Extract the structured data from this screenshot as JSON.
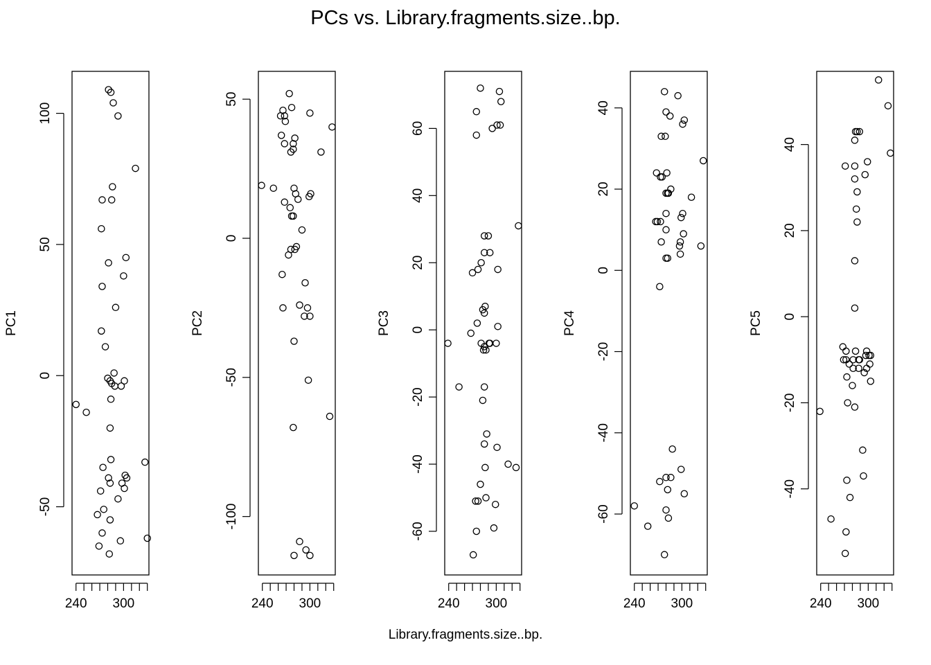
{
  "title": "PCs vs. Library.fragments.size..bp.",
  "xlabel": "Library.fragments.size..bp.",
  "chart_data": [
    {
      "type": "scatter",
      "ylabel": "PC1",
      "xticks": [
        240,
        300
      ],
      "yticks": [
        -50,
        0,
        50,
        100
      ],
      "xlim": [
        235,
        332
      ],
      "ylim": [
        -76,
        116
      ],
      "points": [
        [
          240,
          -11
        ],
        [
          253,
          -14
        ],
        [
          281,
          109
        ],
        [
          284,
          108
        ],
        [
          287,
          104
        ],
        [
          293,
          99
        ],
        [
          315,
          79
        ],
        [
          286,
          72
        ],
        [
          285,
          67
        ],
        [
          273,
          67
        ],
        [
          272,
          56
        ],
        [
          281,
          43
        ],
        [
          303,
          45
        ],
        [
          300,
          38
        ],
        [
          273,
          34
        ],
        [
          290,
          26
        ],
        [
          272,
          17
        ],
        [
          277,
          11
        ],
        [
          288,
          1
        ],
        [
          280,
          -1
        ],
        [
          283,
          -2
        ],
        [
          301,
          -2
        ],
        [
          285,
          -3
        ],
        [
          297,
          -4
        ],
        [
          289,
          -4
        ],
        [
          284,
          -9
        ],
        [
          283,
          -20
        ],
        [
          284,
          -32
        ],
        [
          274,
          -35
        ],
        [
          281,
          -39
        ],
        [
          302,
          -38
        ],
        [
          304,
          -39
        ],
        [
          298,
          -41
        ],
        [
          283,
          -41
        ],
        [
          301,
          -43
        ],
        [
          271,
          -44
        ],
        [
          293,
          -47
        ],
        [
          275,
          -51
        ],
        [
          267,
          -53
        ],
        [
          283,
          -55
        ],
        [
          273,
          -60
        ],
        [
          296,
          -63
        ],
        [
          269,
          -65
        ],
        [
          282,
          -68
        ],
        [
          327,
          -33
        ],
        [
          330,
          -62
        ]
      ]
    },
    {
      "type": "scatter",
      "ylabel": "PC2",
      "xticks": [
        240,
        300
      ],
      "yticks": [
        -100,
        -50,
        0,
        50
      ],
      "xlim": [
        235,
        332
      ],
      "ylim": [
        -121,
        60
      ],
      "points": [
        [
          274,
          52
        ],
        [
          277,
          47
        ],
        [
          266,
          46
        ],
        [
          268,
          44
        ],
        [
          263,
          44
        ],
        [
          300,
          45
        ],
        [
          269,
          42
        ],
        [
          328,
          40
        ],
        [
          264,
          37
        ],
        [
          281,
          36
        ],
        [
          279,
          34
        ],
        [
          268,
          34
        ],
        [
          279,
          32
        ],
        [
          276,
          31
        ],
        [
          314,
          31
        ],
        [
          239,
          19
        ],
        [
          254,
          18
        ],
        [
          280,
          18
        ],
        [
          285,
          14
        ],
        [
          301,
          16
        ],
        [
          299,
          15
        ],
        [
          282,
          16
        ],
        [
          268,
          13
        ],
        [
          275,
          11
        ],
        [
          277,
          8
        ],
        [
          279,
          8
        ],
        [
          290,
          3
        ],
        [
          281,
          -4
        ],
        [
          276,
          -4
        ],
        [
          283,
          -3
        ],
        [
          273,
          -6
        ],
        [
          265,
          -13
        ],
        [
          294,
          -16
        ],
        [
          287,
          -24
        ],
        [
          297,
          -25
        ],
        [
          266,
          -25
        ],
        [
          293,
          -28
        ],
        [
          300,
          -28
        ],
        [
          280,
          -37
        ],
        [
          298,
          -51
        ],
        [
          325,
          -64
        ],
        [
          279,
          -68
        ],
        [
          287,
          -109
        ],
        [
          295,
          -112
        ],
        [
          300,
          -114
        ],
        [
          280,
          -114
        ]
      ]
    },
    {
      "type": "scatter",
      "ylabel": "PC3",
      "xticks": [
        240,
        300
      ],
      "yticks": [
        -60,
        -40,
        -20,
        0,
        20,
        40,
        60
      ],
      "xlim": [
        235,
        332
      ],
      "ylim": [
        -73,
        77
      ],
      "points": [
        [
          280,
          72
        ],
        [
          304,
          71
        ],
        [
          275,
          65
        ],
        [
          306,
          68
        ],
        [
          305,
          61
        ],
        [
          301,
          61
        ],
        [
          295,
          60
        ],
        [
          275,
          58
        ],
        [
          328,
          31
        ],
        [
          290,
          28
        ],
        [
          285,
          28
        ],
        [
          292,
          23
        ],
        [
          285,
          23
        ],
        [
          281,
          20
        ],
        [
          277,
          18
        ],
        [
          302,
          18
        ],
        [
          270,
          17
        ],
        [
          286,
          7
        ],
        [
          285,
          5
        ],
        [
          283,
          6
        ],
        [
          276,
          2
        ],
        [
          302,
          1
        ],
        [
          268,
          -1
        ],
        [
          239,
          -4
        ],
        [
          281,
          -4
        ],
        [
          292,
          -4
        ],
        [
          291,
          -4
        ],
        [
          285,
          -5
        ],
        [
          287,
          -6
        ],
        [
          284,
          -6
        ],
        [
          300,
          -4
        ],
        [
          253,
          -17
        ],
        [
          285,
          -17
        ],
        [
          283,
          -21
        ],
        [
          288,
          -31
        ],
        [
          285,
          -34
        ],
        [
          301,
          -35
        ],
        [
          315,
          -40
        ],
        [
          325,
          -41
        ],
        [
          286,
          -41
        ],
        [
          280,
          -46
        ],
        [
          277,
          -51
        ],
        [
          274,
          -51
        ],
        [
          287,
          -50
        ],
        [
          299,
          -52
        ],
        [
          275,
          -60
        ],
        [
          297,
          -59
        ],
        [
          271,
          -67
        ]
      ]
    },
    {
      "type": "scatter",
      "ylabel": "PC4",
      "xticks": [
        240,
        300
      ],
      "yticks": [
        -60,
        -40,
        -20,
        0,
        20,
        40
      ],
      "xlim": [
        235,
        332
      ],
      "ylim": [
        -75,
        49
      ],
      "points": [
        [
          278,
          44
        ],
        [
          295,
          43
        ],
        [
          280,
          39
        ],
        [
          285,
          38
        ],
        [
          303,
          37
        ],
        [
          301,
          36
        ],
        [
          274,
          33
        ],
        [
          279,
          33
        ],
        [
          327,
          27
        ],
        [
          268,
          24
        ],
        [
          281,
          24
        ],
        [
          273,
          23
        ],
        [
          275,
          23
        ],
        [
          286,
          20
        ],
        [
          282,
          19
        ],
        [
          280,
          19
        ],
        [
          283,
          19
        ],
        [
          312,
          18
        ],
        [
          301,
          14
        ],
        [
          280,
          14
        ],
        [
          299,
          13
        ],
        [
          269,
          12
        ],
        [
          267,
          12
        ],
        [
          273,
          12
        ],
        [
          280,
          10
        ],
        [
          302,
          9
        ],
        [
          298,
          7
        ],
        [
          297,
          6
        ],
        [
          274,
          7
        ],
        [
          324,
          6
        ],
        [
          298,
          4
        ],
        [
          280,
          3
        ],
        [
          282,
          3
        ],
        [
          272,
          -4
        ],
        [
          240,
          -58
        ],
        [
          257,
          -63
        ],
        [
          288,
          -44
        ],
        [
          299,
          -49
        ],
        [
          272,
          -52
        ],
        [
          280,
          -51
        ],
        [
          286,
          -51
        ],
        [
          303,
          -55
        ],
        [
          282,
          -54
        ],
        [
          280,
          -59
        ],
        [
          283,
          -61
        ],
        [
          278,
          -70
        ]
      ]
    },
    {
      "type": "scatter",
      "ylabel": "PC5",
      "xticks": [
        240,
        300
      ],
      "yticks": [
        -40,
        -20,
        0,
        20,
        40
      ],
      "xlim": [
        235,
        332
      ],
      "ylim": [
        -60,
        57
      ],
      "points": [
        [
          313,
          55
        ],
        [
          325,
          49
        ],
        [
          328,
          38
        ],
        [
          289,
          43
        ],
        [
          284,
          43
        ],
        [
          286,
          43
        ],
        [
          283,
          41
        ],
        [
          299,
          36
        ],
        [
          271,
          35
        ],
        [
          283,
          35
        ],
        [
          296,
          33
        ],
        [
          283,
          32
        ],
        [
          286,
          29
        ],
        [
          285,
          25
        ],
        [
          286,
          22
        ],
        [
          283,
          13
        ],
        [
          283,
          2
        ],
        [
          268,
          -7
        ],
        [
          272,
          -8
        ],
        [
          284,
          -8
        ],
        [
          298,
          -8
        ],
        [
          301,
          -9
        ],
        [
          303,
          -9
        ],
        [
          297,
          -9
        ],
        [
          281,
          -10
        ],
        [
          289,
          -10
        ],
        [
          288,
          -10
        ],
        [
          269,
          -10
        ],
        [
          272,
          -10
        ],
        [
          302,
          -11
        ],
        [
          276,
          -11
        ],
        [
          298,
          -12
        ],
        [
          288,
          -12
        ],
        [
          281,
          -12
        ],
        [
          295,
          -13
        ],
        [
          273,
          -14
        ],
        [
          303,
          -15
        ],
        [
          280,
          -16
        ],
        [
          274,
          -20
        ],
        [
          283,
          -21
        ],
        [
          239,
          -22
        ],
        [
          293,
          -31
        ],
        [
          294,
          -37
        ],
        [
          273,
          -38
        ],
        [
          277,
          -42
        ],
        [
          253,
          -47
        ],
        [
          272,
          -50
        ],
        [
          271,
          -55
        ]
      ]
    }
  ]
}
